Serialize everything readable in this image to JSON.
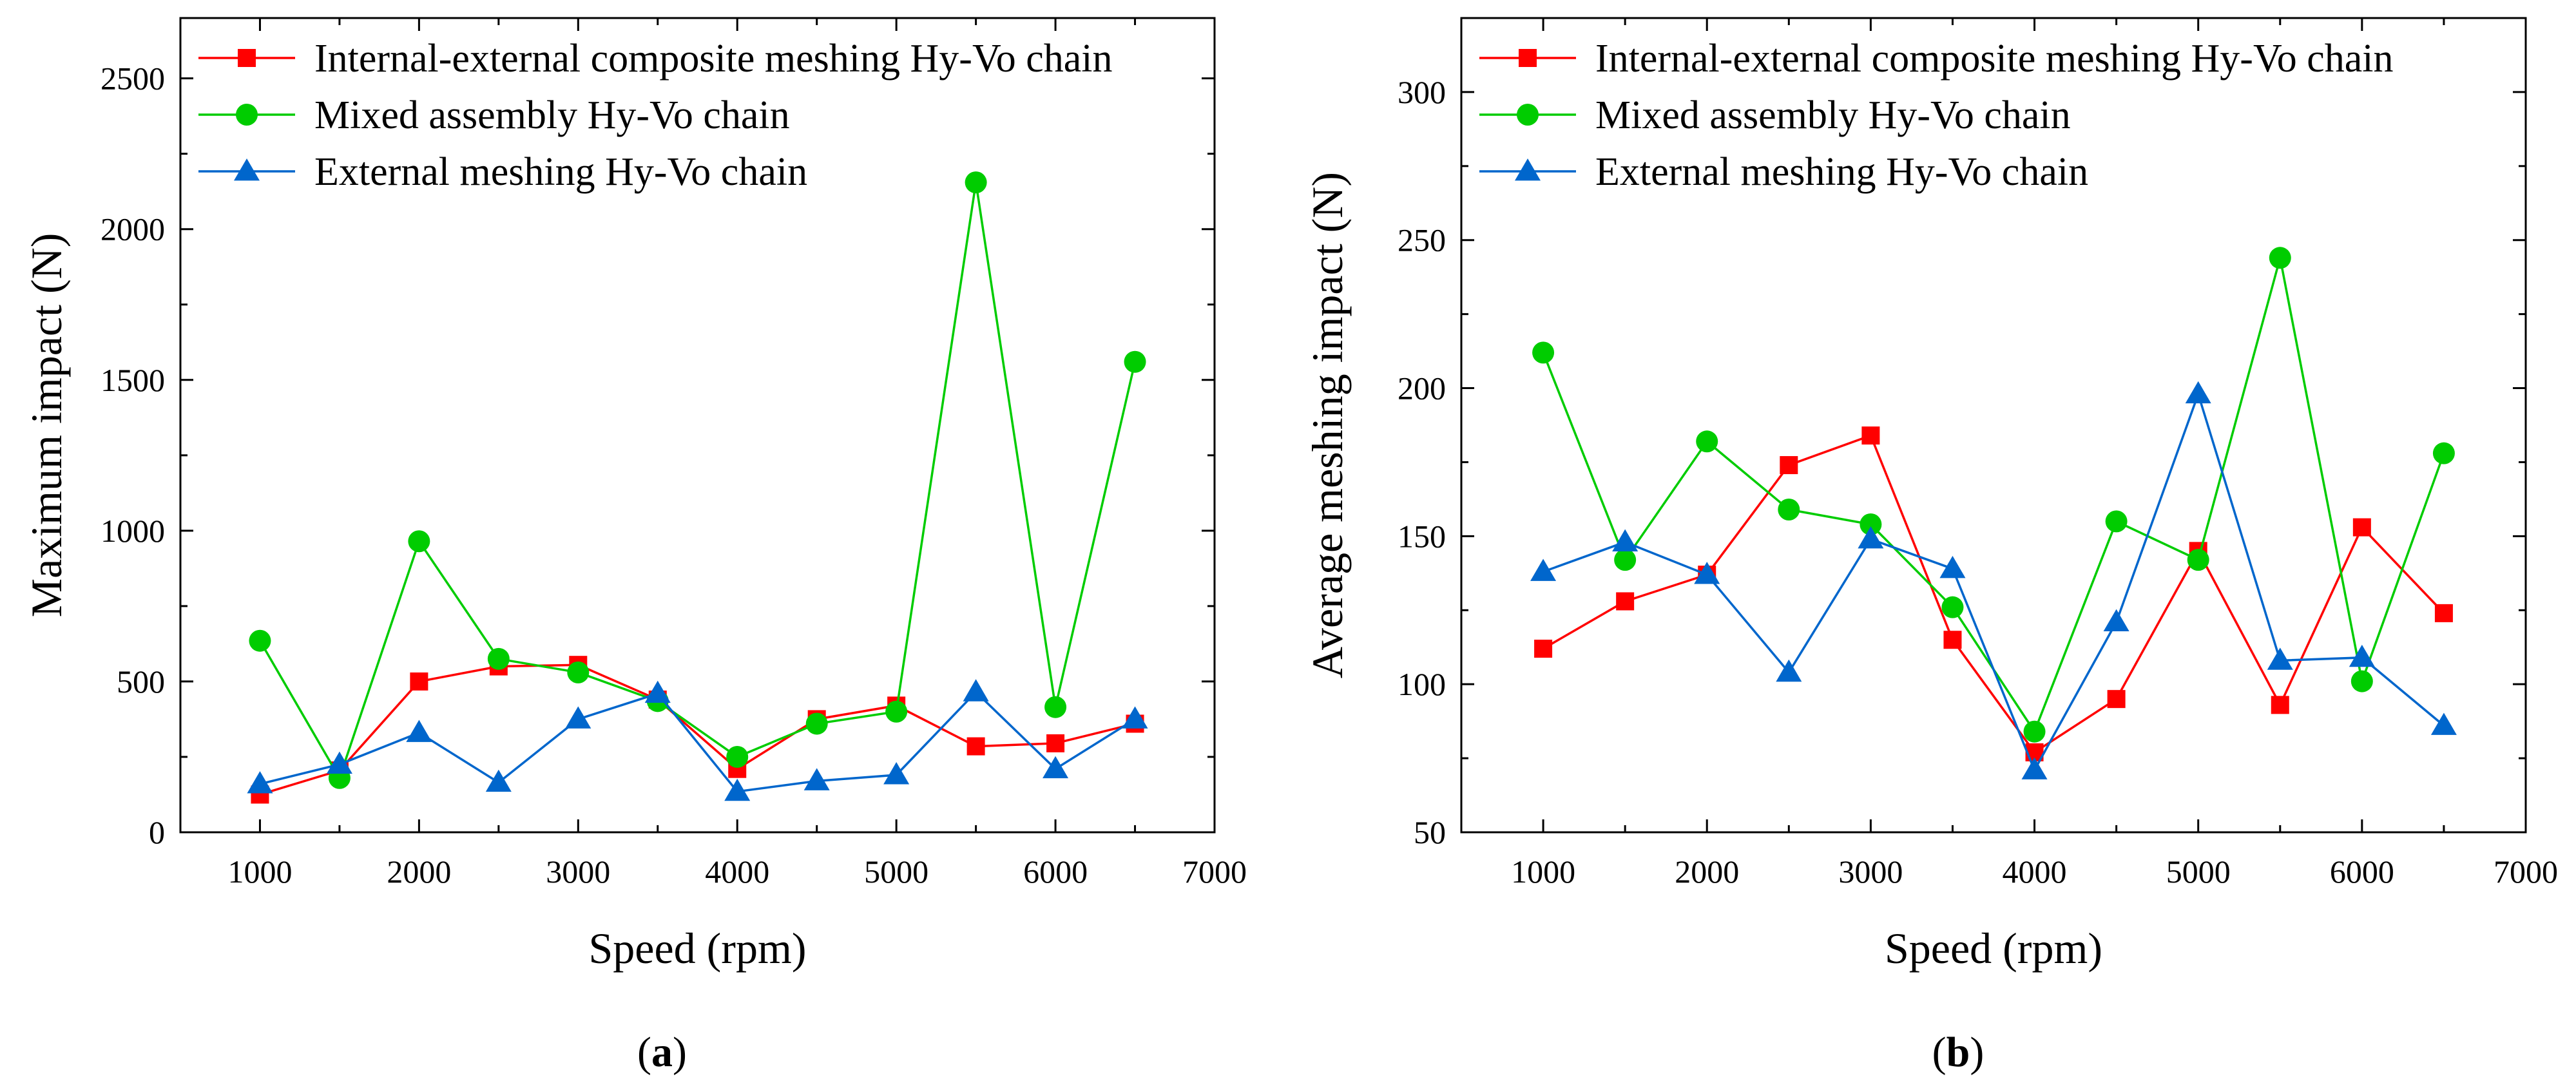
{
  "chart_data": [
    {
      "type": "line",
      "panel": "(a)",
      "panel_letter": "a",
      "xlabel": "Speed (rpm)",
      "ylabel": "Maximum impact (N)",
      "xlim": [
        500,
        7000
      ],
      "ylim": [
        0,
        2700
      ],
      "xticks": [
        1000,
        2000,
        3000,
        4000,
        5000,
        6000,
        7000
      ],
      "yticks": [
        0,
        500,
        1000,
        1500,
        2000,
        2500
      ],
      "grid": false,
      "legend_position": "top-left",
      "x": [
        1000,
        1500,
        2000,
        2500,
        3000,
        3500,
        4000,
        4500,
        5000,
        5500,
        6000,
        6500
      ],
      "series": [
        {
          "name": "Internal-external composite meshing Hy-Vo chain",
          "color": "#ff0000",
          "marker": "square",
          "values": [
            125,
            205,
            500,
            550,
            555,
            440,
            210,
            375,
            420,
            285,
            295,
            360
          ]
        },
        {
          "name": "Mixed assembly Hy-Vo chain",
          "color": "#00cc00",
          "marker": "circle",
          "values": [
            635,
            180,
            965,
            575,
            530,
            435,
            250,
            360,
            400,
            2155,
            415,
            1560
          ]
        },
        {
          "name": "External meshing Hy-Vo chain",
          "color": "#0066cc",
          "marker": "triangle",
          "values": [
            160,
            225,
            330,
            165,
            375,
            460,
            135,
            170,
            190,
            465,
            210,
            375
          ]
        }
      ]
    },
    {
      "type": "line",
      "panel": "(b)",
      "panel_letter": "b",
      "xlabel": "Speed (rpm)",
      "ylabel": "Average meshing impact (N)",
      "xlim": [
        500,
        7000
      ],
      "ylim": [
        50,
        325
      ],
      "xticks": [
        1000,
        2000,
        3000,
        4000,
        5000,
        6000,
        7000
      ],
      "yticks": [
        50,
        100,
        150,
        200,
        250,
        300
      ],
      "grid": false,
      "legend_position": "top-left",
      "x": [
        1000,
        1500,
        2000,
        2500,
        3000,
        3500,
        4000,
        4500,
        5000,
        5500,
        6000,
        6500
      ],
      "series": [
        {
          "name": "Internal-external composite meshing Hy-Vo chain",
          "color": "#ff0000",
          "marker": "square",
          "values": [
            112,
            128,
            137,
            174,
            184,
            115,
            77,
            95,
            145,
            93,
            153,
            124
          ]
        },
        {
          "name": "Mixed assembly Hy-Vo chain",
          "color": "#00cc00",
          "marker": "circle",
          "values": [
            212,
            142,
            182,
            159,
            154,
            126,
            84,
            155,
            142,
            244,
            101,
            178
          ]
        },
        {
          "name": "External meshing Hy-Vo chain",
          "color": "#0066cc",
          "marker": "triangle",
          "values": [
            138,
            148,
            137,
            104,
            149,
            139,
            71,
            121,
            198,
            108,
            109,
            86
          ]
        }
      ]
    }
  ]
}
